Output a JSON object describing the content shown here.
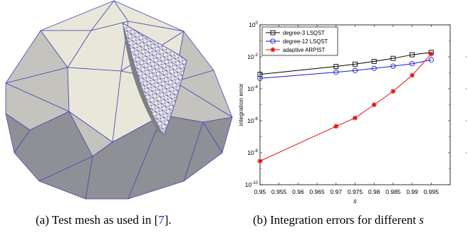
{
  "captions": {
    "a_text": "(a) Test mesh as used in [",
    "a_cite": "7",
    "a_end": "].",
    "b_text": "(b) Integration errors for different ",
    "b_var": "s"
  },
  "mesh": {
    "face_light": "#e9e7d9",
    "face_mid": "#c4c3bd",
    "face_dark": "#8f8f96",
    "edge_color": "#4a4ab8"
  },
  "chart_data": {
    "type": "line",
    "title": "",
    "xlabel": "s",
    "ylabel": "integration error",
    "x": [
      0.95,
      0.97,
      0.975,
      0.98,
      0.985,
      0.99,
      0.995
    ],
    "xlim": [
      0.95,
      1.0
    ],
    "xticks": [
      "0.95",
      "0.955",
      "0.96",
      "0.965",
      "0.97",
      "0.975",
      "0.98",
      "0.985",
      "0.99",
      "0.995"
    ],
    "xtick_values": [
      0.95,
      0.955,
      0.96,
      0.965,
      0.97,
      0.975,
      0.98,
      0.985,
      0.99,
      0.995
    ],
    "ylim": [
      1e-10,
      1
    ],
    "yscale": "log",
    "ytick_exponents": [
      -10,
      -8,
      -6,
      -4,
      -2,
      0
    ],
    "legend_position": "top-left",
    "series": [
      {
        "name": "degree-3 LSQST",
        "color": "#000000",
        "marker": "square",
        "values": [
          0.0008,
          0.0025,
          0.0035,
          0.0052,
          0.008,
          0.0135,
          0.019
        ]
      },
      {
        "name": "degree-12 LSQST",
        "color": "#1a1ad6",
        "marker": "circle",
        "values": [
          0.00045,
          0.0011,
          0.0014,
          0.0019,
          0.0026,
          0.0037,
          0.0065
        ]
      },
      {
        "name": "adaptive ARPIST",
        "color": "#e01010",
        "marker": "star",
        "values": [
          3e-09,
          4.5e-07,
          1.5e-06,
          1e-05,
          7e-05,
          0.0007,
          0.015
        ]
      }
    ]
  }
}
